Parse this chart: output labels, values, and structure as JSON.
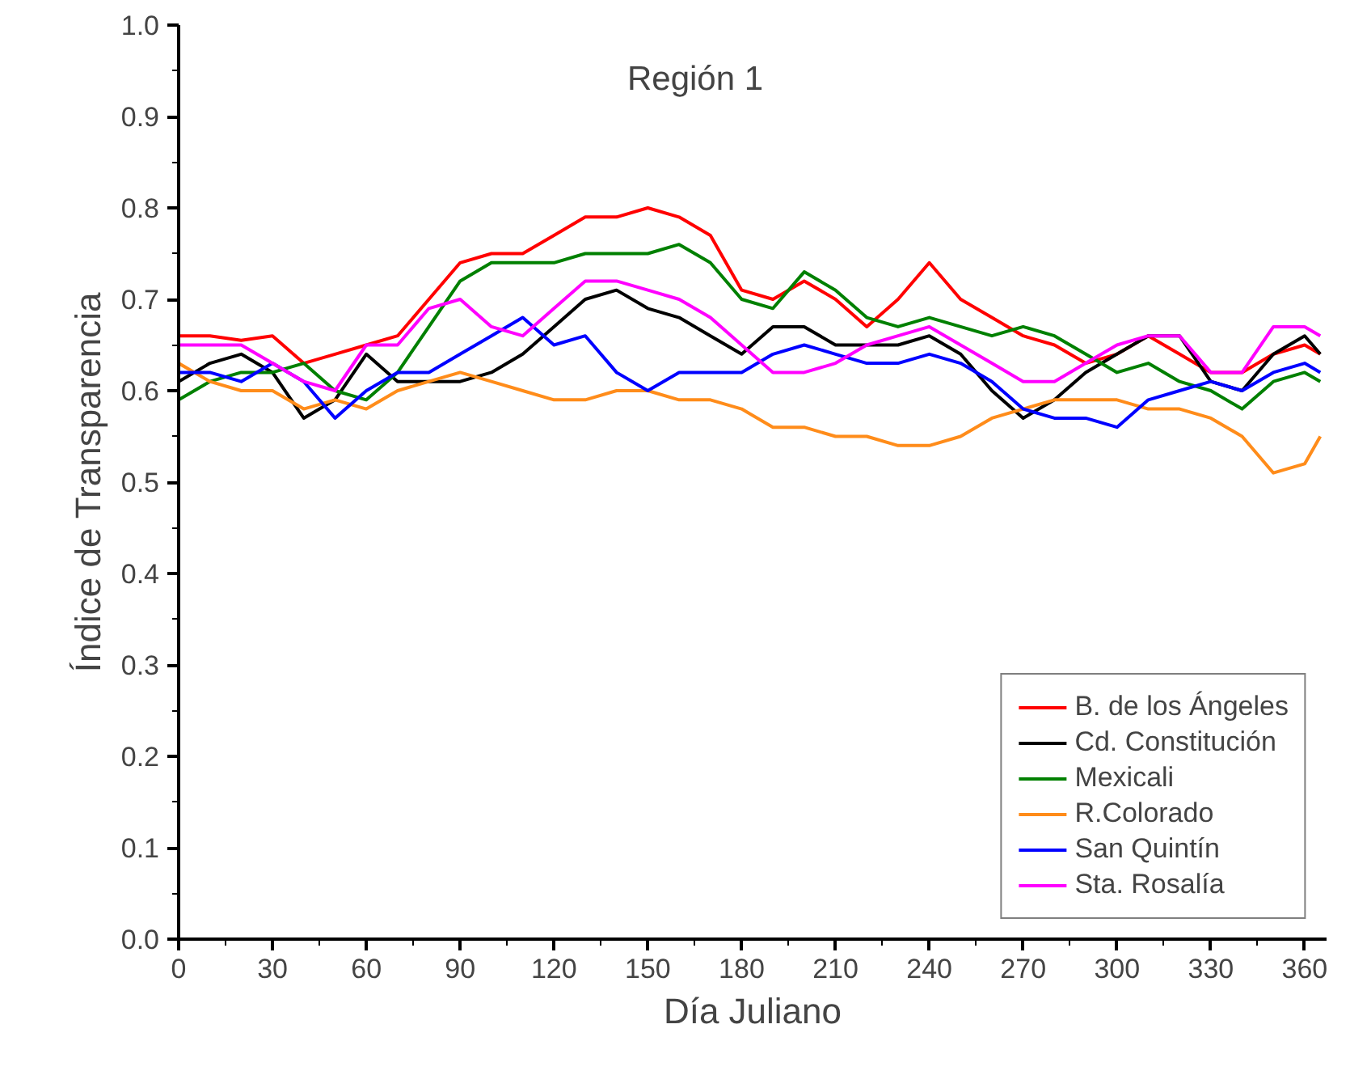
{
  "chart_data": {
    "type": "line",
    "title": "Región 1",
    "xlabel": "Día Juliano",
    "ylabel": "Índice de Transparencia",
    "x": [
      0,
      10,
      20,
      30,
      40,
      50,
      60,
      70,
      80,
      90,
      100,
      110,
      120,
      130,
      140,
      150,
      160,
      170,
      180,
      190,
      200,
      210,
      220,
      230,
      240,
      250,
      260,
      270,
      280,
      290,
      300,
      310,
      320,
      330,
      340,
      350,
      360,
      365
    ],
    "series": [
      {
        "name": "B. de los Ángeles",
        "color": "#ff0000",
        "values": [
          0.66,
          0.66,
          0.655,
          0.66,
          0.63,
          0.64,
          0.65,
          0.66,
          0.7,
          0.74,
          0.75,
          0.75,
          0.77,
          0.79,
          0.79,
          0.8,
          0.79,
          0.77,
          0.71,
          0.7,
          0.72,
          0.7,
          0.67,
          0.7,
          0.74,
          0.7,
          0.68,
          0.66,
          0.65,
          0.63,
          0.64,
          0.66,
          0.64,
          0.62,
          0.62,
          0.64,
          0.65,
          0.64
        ]
      },
      {
        "name": "Cd. Constitución",
        "color": "#000000",
        "values": [
          0.61,
          0.63,
          0.64,
          0.62,
          0.57,
          0.59,
          0.64,
          0.61,
          0.61,
          0.61,
          0.62,
          0.64,
          0.67,
          0.7,
          0.71,
          0.69,
          0.68,
          0.66,
          0.64,
          0.67,
          0.67,
          0.65,
          0.65,
          0.65,
          0.66,
          0.64,
          0.6,
          0.57,
          0.59,
          0.62,
          0.64,
          0.66,
          0.66,
          0.61,
          0.6,
          0.64,
          0.66,
          0.64
        ]
      },
      {
        "name": "Mexicali",
        "color": "#008000",
        "values": [
          0.59,
          0.61,
          0.62,
          0.62,
          0.63,
          0.6,
          0.59,
          0.62,
          0.67,
          0.72,
          0.74,
          0.74,
          0.74,
          0.75,
          0.75,
          0.75,
          0.76,
          0.74,
          0.7,
          0.69,
          0.73,
          0.71,
          0.68,
          0.67,
          0.68,
          0.67,
          0.66,
          0.67,
          0.66,
          0.64,
          0.62,
          0.63,
          0.61,
          0.6,
          0.58,
          0.61,
          0.62,
          0.61
        ]
      },
      {
        "name": "R.Colorado",
        "color": "#ff8c1a",
        "values": [
          0.63,
          0.61,
          0.6,
          0.6,
          0.58,
          0.59,
          0.58,
          0.6,
          0.61,
          0.62,
          0.61,
          0.6,
          0.59,
          0.59,
          0.6,
          0.6,
          0.59,
          0.59,
          0.58,
          0.56,
          0.56,
          0.55,
          0.55,
          0.54,
          0.54,
          0.55,
          0.57,
          0.58,
          0.59,
          0.59,
          0.59,
          0.58,
          0.58,
          0.57,
          0.55,
          0.51,
          0.52,
          0.55
        ]
      },
      {
        "name": "San Quintín",
        "color": "#0000ff",
        "values": [
          0.62,
          0.62,
          0.61,
          0.63,
          0.61,
          0.57,
          0.6,
          0.62,
          0.62,
          0.64,
          0.66,
          0.68,
          0.65,
          0.66,
          0.62,
          0.6,
          0.62,
          0.62,
          0.62,
          0.64,
          0.65,
          0.64,
          0.63,
          0.63,
          0.64,
          0.63,
          0.61,
          0.58,
          0.57,
          0.57,
          0.56,
          0.59,
          0.6,
          0.61,
          0.6,
          0.62,
          0.63,
          0.62
        ]
      },
      {
        "name": "Sta. Rosalía",
        "color": "#ff00ff",
        "values": [
          0.65,
          0.65,
          0.65,
          0.63,
          0.61,
          0.6,
          0.65,
          0.65,
          0.69,
          0.7,
          0.67,
          0.66,
          0.69,
          0.72,
          0.72,
          0.71,
          0.7,
          0.68,
          0.65,
          0.62,
          0.62,
          0.63,
          0.65,
          0.66,
          0.67,
          0.65,
          0.63,
          0.61,
          0.61,
          0.63,
          0.65,
          0.66,
          0.66,
          0.62,
          0.62,
          0.67,
          0.67,
          0.66
        ]
      }
    ],
    "xlim": [
      0,
      367
    ],
    "ylim": [
      0,
      1
    ],
    "xticks": [
      0,
      30,
      60,
      90,
      120,
      150,
      180,
      210,
      240,
      270,
      300,
      330,
      360
    ],
    "yticks": [
      {
        "value": 0,
        "label": "0.0"
      },
      {
        "value": 0.1,
        "label": "0.1"
      },
      {
        "value": 0.2,
        "label": "0.2"
      },
      {
        "value": 0.3,
        "label": "0.3"
      },
      {
        "value": 0.4,
        "label": "0.4"
      },
      {
        "value": 0.5,
        "label": "0.5"
      },
      {
        "value": 0.6,
        "label": "0.6"
      },
      {
        "value": 0.7,
        "label": "0.7"
      },
      {
        "value": 0.8,
        "label": "0.8"
      },
      {
        "value": 0.9,
        "label": "0.9"
      },
      {
        "value": 1,
        "label": "1.0"
      }
    ],
    "grid": false,
    "legend": "bottom right",
    "marker": "none",
    "line_style": "solid"
  }
}
